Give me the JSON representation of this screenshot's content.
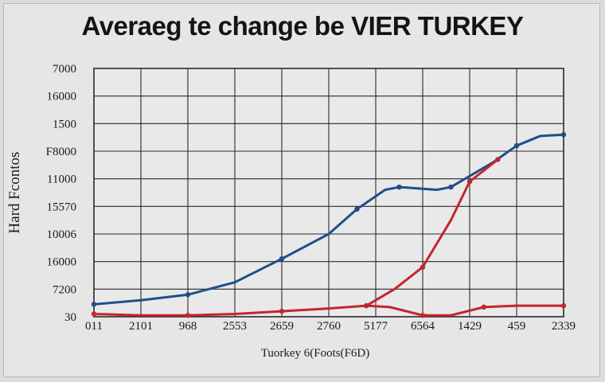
{
  "title": "Averaeg te change be VIER TURKEY",
  "chart_data": {
    "type": "line",
    "title": "Averaeg te change be VIER TURKEY",
    "xlabel": "Tuorkey 6(Foots(F6D)",
    "ylabel": "Hard Fcontos",
    "grid": true,
    "y_tick_labels": [
      "7000",
      "16000",
      "1500",
      "F8000",
      "11000",
      "15570",
      "10006",
      "16000",
      "7200",
      "30"
    ],
    "x_tick_labels": [
      "011",
      "2101",
      "968",
      "2553",
      "2659",
      "2760",
      "5177",
      "6564",
      "1429",
      "459",
      "2339"
    ],
    "ylim": [
      0,
      9
    ],
    "xlim": [
      0,
      10
    ],
    "series": [
      {
        "color": "#1f4e8c",
        "points": [
          [
            0,
            0.45
          ],
          [
            1,
            0.6
          ],
          [
            2,
            0.8
          ],
          [
            3,
            1.25
          ],
          [
            4,
            2.1
          ],
          [
            5,
            3.0
          ],
          [
            5.6,
            3.9
          ],
          [
            6.2,
            4.6
          ],
          [
            6.5,
            4.7
          ],
          [
            7.3,
            4.6
          ],
          [
            7.6,
            4.7
          ],
          [
            8.5,
            5.6
          ],
          [
            9.0,
            6.2
          ],
          [
            9.5,
            6.55
          ],
          [
            10,
            6.6
          ]
        ]
      },
      {
        "color": "#c0272d",
        "points": [
          [
            0,
            0.1
          ],
          [
            1,
            0.05
          ],
          [
            2,
            0.05
          ],
          [
            3,
            0.1
          ],
          [
            4,
            0.2
          ],
          [
            5,
            0.3
          ],
          [
            5.8,
            0.4
          ],
          [
            6.3,
            0.35
          ],
          [
            7,
            0.05
          ],
          [
            7.6,
            0.05
          ],
          [
            8.3,
            0.35
          ],
          [
            9,
            0.4
          ],
          [
            10,
            0.4
          ]
        ]
      },
      {
        "color": "#c0272d",
        "points": [
          [
            5.8,
            0.4
          ],
          [
            6.4,
            1.0
          ],
          [
            7.0,
            1.8
          ],
          [
            7.6,
            3.5
          ],
          [
            8.0,
            4.9
          ],
          [
            8.6,
            5.7
          ]
        ]
      }
    ]
  }
}
